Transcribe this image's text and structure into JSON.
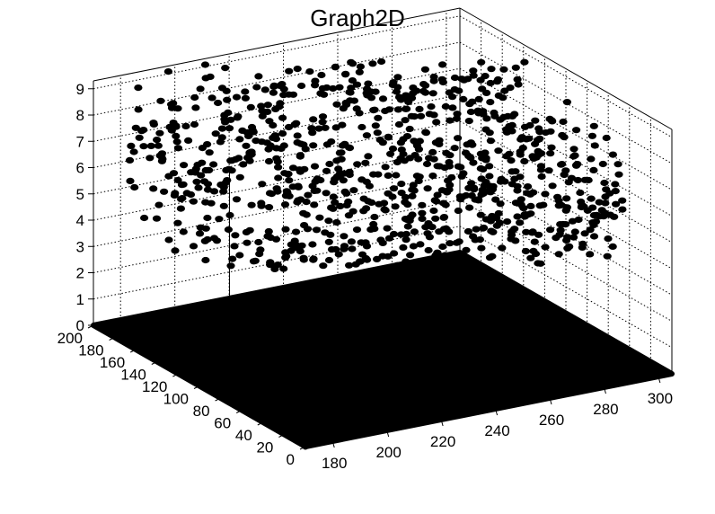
{
  "window": {
    "title": "Graph2D"
  },
  "chart_data": {
    "type": "scatter3d",
    "title": "Graph2D",
    "xlabel": "",
    "ylabel": "",
    "zlabel": "",
    "xlim": [
      170,
      305
    ],
    "ylim": [
      0,
      200
    ],
    "zlim": [
      0,
      9.3
    ],
    "x_ticks": [
      180,
      200,
      220,
      240,
      260,
      280,
      300
    ],
    "y_ticks": [
      0,
      20,
      40,
      60,
      80,
      100,
      120,
      140,
      160,
      180,
      200
    ],
    "z_ticks": [
      0,
      1,
      2,
      3,
      4,
      5,
      6,
      7,
      8,
      9
    ],
    "grid": true,
    "marker_color": "#000000",
    "series": [
      {
        "description_free": true,
        "base_plane": {
          "z": 0,
          "x_range": [
            170,
            305
          ],
          "y_range": [
            0,
            200
          ],
          "fill": "dense"
        },
        "cloud": {
          "x_range": [
            170,
            305
          ],
          "y_range": [
            0,
            200
          ],
          "z_range": [
            2.0,
            9.3
          ]
        }
      }
    ]
  }
}
